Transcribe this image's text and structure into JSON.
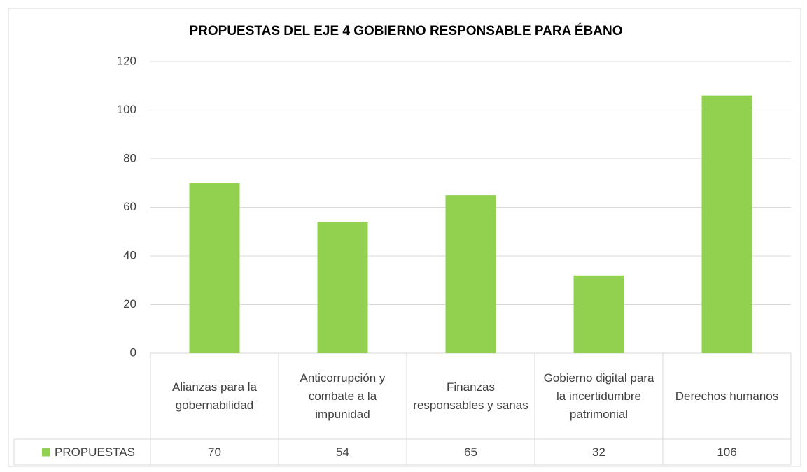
{
  "chart_data": {
    "type": "bar",
    "title": "PROPUESTAS DEL EJE 4 GOBIERNO RESPONSABLE PARA ÉBANO",
    "categories": [
      "Alianzas para la gobernabilidad",
      "Anticorrupción y combate a la impunidad",
      "Finanzas responsables y sanas",
      "Gobierno digital para la incertidumbre patrimonial",
      "Derechos humanos"
    ],
    "series": [
      {
        "name": "PROPUESTAS",
        "color": "#92d050",
        "values": [
          70,
          54,
          65,
          32,
          106
        ]
      }
    ],
    "ylim": [
      0,
      120
    ],
    "yticks": [
      0,
      20,
      40,
      60,
      80,
      100,
      120
    ],
    "grid": true,
    "data_table": true
  }
}
